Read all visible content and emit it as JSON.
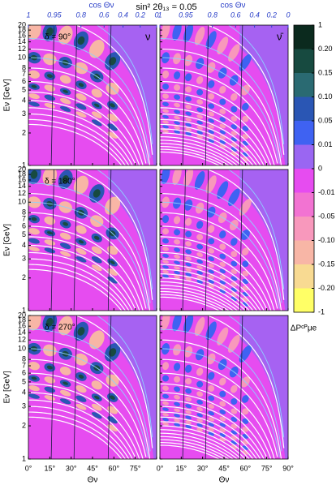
{
  "chart_data": {
    "type": "contour",
    "title": "sin² 2θ₁₃ = 0.05",
    "top_axis_label": "cos Θν",
    "x_label": "Θν",
    "y_label": "Eν [GeV]",
    "colorbar_label": "ΔPᶜᴾμe",
    "columns": [
      {
        "label": "ν"
      },
      {
        "label": "ν̄"
      }
    ],
    "rows": [
      {
        "label": "δ = 90°"
      },
      {
        "label": "δ = 180°"
      },
      {
        "label": "δ = 270°"
      }
    ],
    "xlim": [
      0,
      90
    ],
    "xticks": [
      {
        "value": 0,
        "label": "0°"
      },
      {
        "value": 15,
        "label": "15°"
      },
      {
        "value": 30,
        "label": "30°"
      },
      {
        "value": 45,
        "label": "45°"
      },
      {
        "value": 60,
        "label": "60°"
      },
      {
        "value": 75,
        "label": "75°"
      },
      {
        "value": 90,
        "label": "90°"
      }
    ],
    "top_xticks": [
      1,
      0.95,
      0.8,
      0.6,
      0.4,
      0.2,
      0
    ],
    "ylim": [
      1,
      20
    ],
    "yticks": [
      1,
      2,
      3,
      4,
      5,
      6,
      7,
      8,
      10,
      12,
      14,
      16,
      18,
      20
    ],
    "log_y": true,
    "colorbar": {
      "levels": [
        1,
        {
          "value": 0.2,
          "label": "0.20"
        },
        0.15,
        {
          "value": 0.1,
          "label": "0.10"
        },
        0.05,
        0.01,
        0,
        -0.01,
        -0.05,
        {
          "value": -0.1,
          "label": "-0.10"
        },
        -0.15,
        {
          "value": -0.2,
          "label": "-0.20"
        },
        -1
      ],
      "colors": [
        "#0b2a1e",
        "#174a40",
        "#2a6a72",
        "#2a56b4",
        "#3f62f2",
        "#9a66f2",
        "#e64cf0",
        "#f273d2",
        "#f898bc",
        "#f8b6a6",
        "#f8da92",
        "#ffff66"
      ]
    }
  }
}
